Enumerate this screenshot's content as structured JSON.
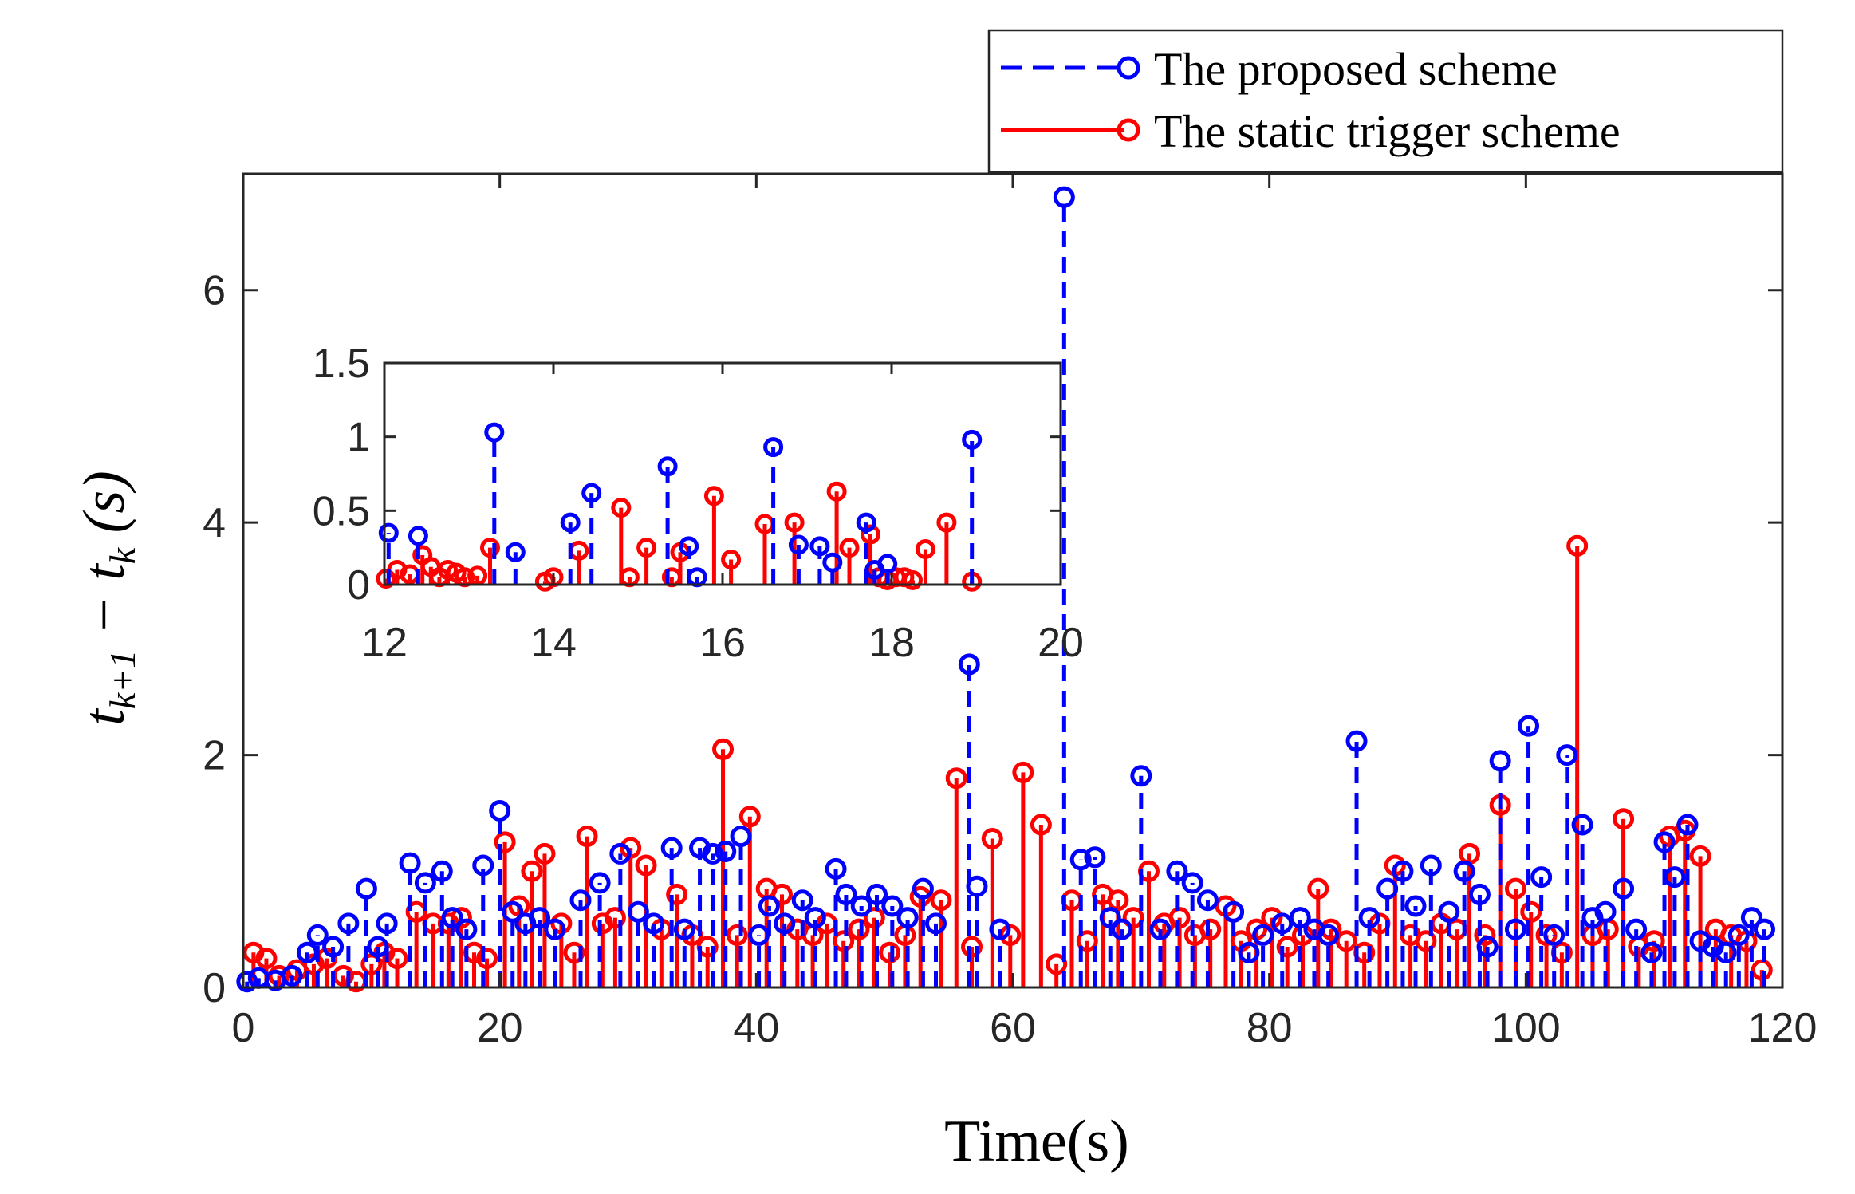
{
  "chart_data": {
    "type": "stem",
    "xlabel": "Time(s)",
    "ylabel": "t_{k+1} - t_k (s)",
    "xlim": [
      0,
      120
    ],
    "ylim": [
      0,
      7
    ],
    "xticks": [
      "0",
      "20",
      "40",
      "60",
      "80",
      "100",
      "120"
    ],
    "yticks": [
      "0",
      "2",
      "4",
      "6"
    ],
    "legend": {
      "position": "top-right",
      "entries": [
        "The proposed scheme",
        "The static trigger scheme"
      ]
    },
    "colors": {
      "proposed": "#0000ff",
      "static": "#ff0000"
    },
    "series": [
      {
        "name": "The proposed scheme",
        "style": "dashed-stem-circle",
        "x": [
          0.3,
          1.2,
          2.5,
          3.8,
          5.0,
          5.8,
          7.0,
          8.2,
          9.6,
          10.5,
          11.2,
          13.0,
          14.2,
          15.5,
          16.3,
          17.4,
          18.7,
          20.0,
          21.0,
          22.0,
          23.1,
          24.3,
          26.3,
          27.8,
          29.4,
          30.8,
          32.0,
          33.4,
          34.4,
          35.6,
          36.6,
          37.6,
          38.8,
          40.2,
          41.0,
          42.2,
          43.6,
          44.6,
          46.2,
          47.0,
          48.2,
          49.4,
          50.6,
          51.8,
          53.0,
          54.0,
          56.6,
          57.2,
          59.0,
          64.0,
          65.3,
          66.4,
          67.6,
          68.5,
          70.0,
          71.5,
          72.8,
          74.0,
          75.2,
          77.2,
          78.4,
          79.5,
          81.0,
          82.4,
          83.5,
          84.6,
          86.8,
          87.8,
          89.2,
          90.4,
          91.4,
          92.6,
          94.0,
          95.2,
          96.4,
          97.0,
          98.0,
          99.2,
          100.2,
          101.2,
          102.2,
          103.2,
          104.4,
          105.2,
          106.2,
          107.6,
          108.6,
          109.8,
          110.8,
          111.6,
          112.6,
          113.6,
          114.6,
          115.6,
          116.6,
          117.6,
          118.6
        ],
        "y": [
          0.05,
          0.08,
          0.06,
          0.1,
          0.3,
          0.45,
          0.35,
          0.55,
          0.85,
          0.35,
          0.55,
          1.07,
          0.9,
          1.0,
          0.6,
          0.5,
          1.05,
          1.52,
          0.65,
          0.55,
          0.6,
          0.5,
          0.75,
          0.9,
          1.15,
          0.65,
          0.55,
          1.2,
          0.5,
          1.2,
          1.15,
          1.17,
          1.3,
          0.45,
          0.7,
          0.55,
          0.75,
          0.6,
          1.02,
          0.8,
          0.7,
          0.8,
          0.7,
          0.6,
          0.85,
          0.55,
          2.78,
          0.87,
          0.5,
          6.8,
          1.1,
          1.12,
          0.6,
          0.5,
          1.82,
          0.5,
          1.0,
          0.9,
          0.75,
          0.65,
          0.3,
          0.45,
          0.55,
          0.6,
          0.5,
          0.45,
          2.12,
          0.6,
          0.85,
          1.0,
          0.7,
          1.05,
          0.65,
          1.0,
          0.8,
          0.35,
          1.95,
          0.5,
          2.25,
          0.95,
          0.45,
          2.0,
          1.4,
          0.6,
          0.65,
          0.85,
          0.5,
          0.3,
          1.25,
          0.95,
          1.4,
          0.4,
          0.35,
          0.3,
          0.45,
          0.6,
          0.5
        ]
      },
      {
        "name": "The static trigger scheme",
        "style": "solid-stem-circle",
        "x": [
          0.8,
          1.8,
          2.8,
          4.2,
          5.5,
          6.5,
          7.8,
          8.8,
          10.0,
          11.0,
          12.0,
          13.5,
          14.8,
          16.0,
          17.0,
          18.0,
          19.0,
          20.4,
          21.5,
          22.5,
          23.5,
          24.8,
          25.8,
          26.8,
          28.0,
          29.0,
          30.2,
          31.4,
          32.6,
          33.8,
          35.0,
          36.2,
          37.4,
          38.5,
          39.5,
          40.8,
          42.0,
          43.2,
          44.4,
          45.5,
          46.8,
          48.0,
          49.2,
          50.4,
          51.6,
          52.8,
          54.4,
          55.6,
          56.8,
          58.4,
          59.8,
          60.8,
          62.2,
          63.4,
          64.6,
          65.8,
          67.0,
          68.2,
          69.4,
          70.6,
          71.8,
          73.0,
          74.2,
          75.4,
          76.6,
          77.8,
          79.0,
          80.2,
          81.4,
          82.6,
          83.8,
          84.8,
          86.0,
          87.4,
          88.6,
          89.8,
          91.0,
          92.2,
          93.4,
          94.6,
          95.6,
          96.8,
          98.0,
          99.2,
          100.4,
          101.6,
          102.8,
          104.0,
          105.2,
          106.4,
          107.6,
          108.8,
          110.0,
          111.2,
          112.4,
          113.6,
          114.8,
          116.0,
          117.2,
          118.4
        ],
        "y": [
          0.3,
          0.25,
          0.1,
          0.15,
          0.2,
          0.25,
          0.1,
          0.05,
          0.2,
          0.3,
          0.25,
          0.65,
          0.55,
          0.55,
          0.6,
          0.3,
          0.25,
          1.25,
          0.7,
          1.0,
          1.15,
          0.55,
          0.3,
          1.3,
          0.55,
          0.6,
          1.2,
          1.05,
          0.5,
          0.8,
          0.45,
          0.35,
          2.05,
          0.45,
          1.47,
          0.85,
          0.8,
          0.5,
          0.45,
          0.55,
          0.4,
          0.5,
          0.6,
          0.3,
          0.45,
          0.78,
          0.75,
          1.8,
          0.35,
          1.28,
          0.45,
          1.85,
          1.4,
          0.2,
          0.75,
          0.4,
          0.8,
          0.75,
          0.6,
          1.0,
          0.55,
          0.6,
          0.45,
          0.5,
          0.7,
          0.4,
          0.5,
          0.6,
          0.35,
          0.45,
          0.85,
          0.5,
          0.4,
          0.3,
          0.55,
          1.05,
          0.45,
          0.4,
          0.55,
          0.5,
          1.15,
          0.45,
          1.57,
          0.85,
          0.65,
          0.45,
          0.3,
          3.8,
          0.45,
          0.5,
          1.45,
          0.35,
          0.4,
          1.3,
          1.35,
          1.13,
          0.5,
          0.45,
          0.4,
          0.15
        ]
      }
    ],
    "inset": {
      "xlim": [
        12,
        20
      ],
      "ylim": [
        0,
        1.5
      ],
      "xticks": [
        "12",
        "14",
        "16",
        "18",
        "20"
      ],
      "yticks": [
        "0",
        "0.5",
        "1",
        "1.5"
      ],
      "series": [
        {
          "name": "The proposed scheme",
          "x": [
            12.05,
            12.4,
            13.3,
            13.55,
            14.2,
            14.45,
            15.35,
            15.6,
            15.7,
            16.6,
            16.9,
            17.15,
            17.3,
            17.7,
            17.8,
            17.95,
            18.95
          ],
          "y": [
            0.35,
            0.33,
            1.03,
            0.22,
            0.42,
            0.62,
            0.8,
            0.26,
            0.05,
            0.93,
            0.27,
            0.26,
            0.15,
            0.42,
            0.1,
            0.14,
            0.98
          ]
        },
        {
          "name": "The static trigger scheme",
          "x": [
            11.95,
            12.15,
            12.3,
            12.45,
            12.55,
            12.65,
            12.75,
            12.85,
            12.95,
            13.1,
            13.25,
            13.9,
            14.0,
            14.3,
            14.8,
            14.9,
            15.1,
            15.4,
            15.5,
            15.9,
            16.1,
            16.5,
            16.85,
            17.35,
            17.5,
            17.75,
            17.85,
            17.95,
            18.05,
            18.15,
            18.25,
            18.4,
            18.65,
            18.95
          ],
          "y": [
            0.04,
            0.1,
            0.07,
            0.2,
            0.12,
            0.05,
            0.1,
            0.08,
            0.05,
            0.06,
            0.25,
            0.02,
            0.05,
            0.23,
            0.52,
            0.05,
            0.25,
            0.05,
            0.22,
            0.6,
            0.17,
            0.41,
            0.42,
            0.63,
            0.25,
            0.34,
            0.05,
            0.03,
            0.05,
            0.05,
            0.03,
            0.24,
            0.42,
            0.02
          ]
        }
      ]
    }
  }
}
